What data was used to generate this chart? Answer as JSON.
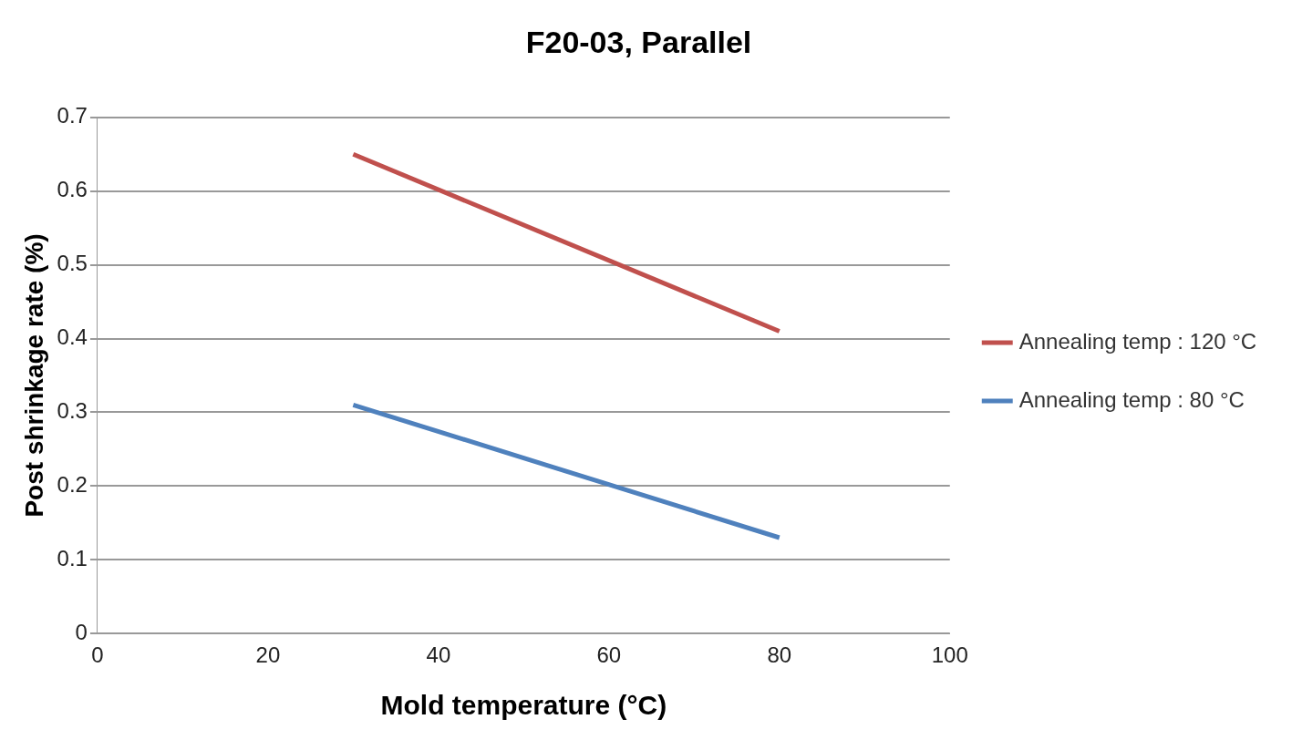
{
  "chart_data": {
    "type": "line",
    "title": "F20-03, Parallel",
    "xlabel": "Mold temperature (°C)",
    "ylabel": "Post shrinkage rate (%)",
    "x": [
      30,
      80
    ],
    "series": [
      {
        "name": "Annealing temp : 120 °C",
        "color": "#c0504d",
        "values": [
          0.65,
          0.41
        ]
      },
      {
        "name": "Annealing temp : 80 °C",
        "color": "#4f81bd",
        "values": [
          0.31,
          0.13
        ]
      }
    ],
    "xlim": [
      0,
      100
    ],
    "xticks": [
      0,
      20,
      40,
      60,
      80,
      100
    ],
    "ylim": [
      0,
      0.7
    ],
    "yticks": [
      0,
      0.1,
      0.2,
      0.3,
      0.4,
      0.5,
      0.6,
      0.7
    ],
    "grid": "y",
    "legend": "right",
    "marker": "none",
    "line_style": "solid"
  }
}
